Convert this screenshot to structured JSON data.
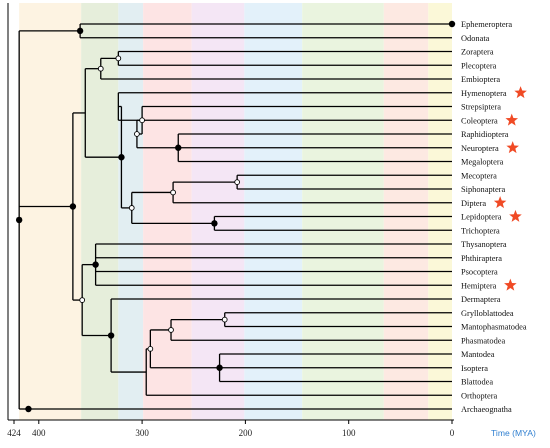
{
  "taxa": [
    {
      "label": "Ephemeroptera",
      "star": false
    },
    {
      "label": "Odonata",
      "star": false
    },
    {
      "label": "Zoraptera",
      "star": false
    },
    {
      "label": "Plecoptera",
      "star": false
    },
    {
      "label": "Embioptera",
      "star": false
    },
    {
      "label": "Hymenoptera",
      "star": true
    },
    {
      "label": "Strepsiptera",
      "star": false
    },
    {
      "label": "Coleoptera",
      "star": true
    },
    {
      "label": "Raphidioptera",
      "star": false
    },
    {
      "label": "Neuroptera",
      "star": true
    },
    {
      "label": "Megaloptera",
      "star": false
    },
    {
      "label": "Mecoptera",
      "star": false
    },
    {
      "label": "Siphonaptera",
      "star": false
    },
    {
      "label": "Diptera",
      "star": true
    },
    {
      "label": "Lepidoptera",
      "star": true
    },
    {
      "label": "Trichoptera",
      "star": false
    },
    {
      "label": "Thysanoptera",
      "star": false
    },
    {
      "label": "Phthiraptera",
      "star": false
    },
    {
      "label": "Psocoptera",
      "star": false
    },
    {
      "label": "Hemiptera",
      "star": true
    },
    {
      "label": "Dermaptera",
      "star": false
    },
    {
      "label": "Grylloblattodea",
      "star": false
    },
    {
      "label": "Mantophasmatodea",
      "star": false
    },
    {
      "label": "Phasmatodea",
      "star": false
    },
    {
      "label": "Mantodea",
      "star": false
    },
    {
      "label": "Isoptera",
      "star": false
    },
    {
      "label": "Blattodea",
      "star": false
    },
    {
      "label": "Orthoptera",
      "star": false
    },
    {
      "label": "Archaeognatha",
      "star": false
    }
  ],
  "axis": {
    "title": "Time (MYA)",
    "max": 424,
    "ticks": [
      {
        "value": 424,
        "label": "424"
      },
      {
        "value": 400,
        "label": "400"
      },
      {
        "value": 300,
        "label": "300"
      },
      {
        "value": 200,
        "label": "200"
      },
      {
        "value": 100,
        "label": "100"
      },
      {
        "value": 0,
        "label": "0"
      }
    ]
  },
  "tree": {
    "c": [
      {
        "t": 360,
        "dot": "filled",
        "c": [
          {
            "leaf": 0
          },
          {
            "leaf": 1
          }
        ]
      },
      {
        "t": 367,
        "dot": "filled",
        "c": [
          {
            "t": 355,
            "dot": "none",
            "c": [
              {
                "t": 340,
                "dot": "open",
                "c": [
                  {
                    "t": 323,
                    "dot": "open",
                    "c": [
                      {
                        "leaf": 2
                      },
                      {
                        "leaf": 3
                      }
                    ]
                  },
                  {
                    "leaf": 4
                  }
                ]
              },
              {
                "t": 320,
                "dot": "filled",
                "c": [
                  {
                    "t": 323,
                    "dot": "none",
                    "c": [
                      {
                        "leaf": 5
                      },
                      {
                        "t": 300,
                        "dot": "open",
                        "c": [
                          {
                            "leaf": 6
                          },
                          {
                            "t": 305,
                            "dot": "open",
                            "c": [
                              {
                                "leaf": 7
                              },
                              {
                                "t": 265,
                                "dot": "filled",
                                "c": [
                                  {
                                    "leaf": 8
                                  },
                                  {
                                    "leaf": 9
                                  },
                                  {
                                    "leaf": 10
                                  }
                                ]
                              }
                            ]
                          }
                        ]
                      }
                    ]
                  },
                  {
                    "t": 310,
                    "dot": "open",
                    "c": [
                      {
                        "t": 270,
                        "dot": "open",
                        "c": [
                          {
                            "t": 208,
                            "dot": "open",
                            "c": [
                              {
                                "leaf": 11
                              },
                              {
                                "leaf": 12
                              }
                            ]
                          },
                          {
                            "leaf": 13
                          }
                        ]
                      },
                      {
                        "t": 230,
                        "dot": "filled",
                        "c": [
                          {
                            "leaf": 14
                          },
                          {
                            "leaf": 15
                          }
                        ]
                      }
                    ]
                  }
                ]
              }
            ]
          },
          {
            "t": 358,
            "dot": "open",
            "c": [
              {
                "t": 345,
                "dot": "filled",
                "c": [
                  {
                    "leaf": 16
                  },
                  {
                    "leaf": 17
                  },
                  {
                    "leaf": 18
                  },
                  {
                    "leaf": 19
                  }
                ]
              },
              {
                "t": 330,
                "dot": "filled",
                "c": [
                  {
                    "leaf": 20
                  },
                  {
                    "t": 296,
                    "dot": "none",
                    "c": [
                      {
                        "t": 292,
                        "dot": "open",
                        "c": [
                          {
                            "t": 272,
                            "dot": "open",
                            "c": [
                              {
                                "t": 220,
                                "dot": "open",
                                "c": [
                                  {
                                    "leaf": 21
                                  },
                                  {
                                    "leaf": 22
                                  }
                                ]
                              },
                              {
                                "leaf": 23
                              }
                            ]
                          },
                          {
                            "t": 225,
                            "dot": "filled",
                            "c": [
                              {
                                "leaf": 24
                              },
                              {
                                "leaf": 25
                              },
                              {
                                "leaf": 26
                              }
                            ]
                          }
                        ]
                      },
                      {
                        "leaf": 27
                      }
                    ]
                  }
                ]
              }
            ]
          }
        ]
      },
      {
        "t": 410,
        "dot": "filled",
        "c": [
          {
            "leaf": 28
          }
        ]
      }
    ],
    "t": 419,
    "dot": "filled"
  },
  "bands": [
    {
      "from": 419,
      "to": 359,
      "color": "#fdf3e2"
    },
    {
      "from": 359,
      "to": 323,
      "color": "#e6eedb"
    },
    {
      "from": 323,
      "to": 299,
      "color": "#e2eef2"
    },
    {
      "from": 299,
      "to": 252,
      "color": "#fde4e4"
    },
    {
      "from": 252,
      "to": 201,
      "color": "#f4e6f5"
    },
    {
      "from": 201,
      "to": 145,
      "color": "#e3f1fa"
    },
    {
      "from": 145,
      "to": 66,
      "color": "#eaf4df"
    },
    {
      "from": 66,
      "to": 23,
      "color": "#fde9e2"
    },
    {
      "from": 23,
      "to": 0,
      "color": "#fbf8d8"
    }
  ],
  "colors": {
    "star": "#f04a25",
    "branch": "#000000",
    "axis_title": "#2f7fd0"
  }
}
